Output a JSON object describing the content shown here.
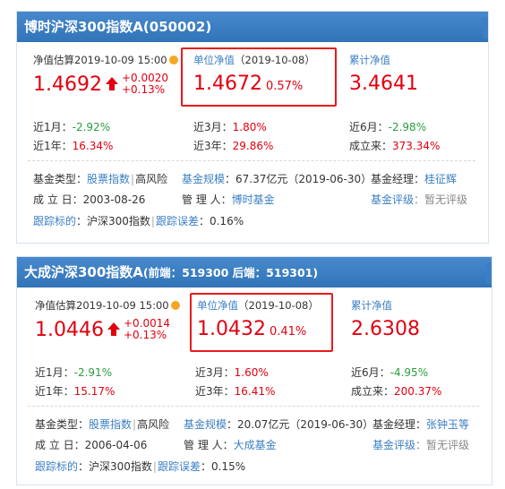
{
  "funds": [
    {
      "title": "博时沪深300指数A(050002)",
      "estimate_label": "净值估算2019-10-09 15:00",
      "estimate_value": "1.4692",
      "estimate_change_abs": "+0.0020",
      "estimate_change_pct": "+0.13%",
      "nav_label": "单位净值",
      "nav_date": "（2019-10-08）",
      "nav_value": "1.4672",
      "nav_pct": "0.57%",
      "acc_label": "累计净值",
      "acc_value": "3.4641",
      "perf": {
        "m1_label": "近1月：",
        "m1": "-2.92%",
        "m3_label": "近3月：",
        "m3": "1.80%",
        "m6_label": "近6月：",
        "m6": "-2.98%",
        "y1_label": "近1年：",
        "y1": "16.34%",
        "y3_label": "近3年：",
        "y3": "29.86%",
        "since_label": "成立来：",
        "since": "373.34%"
      },
      "info": {
        "type_label": "基金类型：",
        "type": "股票指数",
        "risk": "高风险",
        "scale_label": "基金规模",
        "scale": "：67.37亿元（2019-06-30）",
        "manager_label": "基金经理：",
        "manager": "桂征辉",
        "founded_label": "成 立 日：",
        "founded": "2003-08-26",
        "admin_label": "管 理 人：",
        "admin": "博时基金",
        "rating_label": "基金评级",
        "rating": "：暂无评级",
        "track_label": "跟踪标的",
        "track": "：沪深300指数",
        "error_label": "跟踪误差",
        "error": "：0.16%"
      }
    },
    {
      "title": "大成沪深300指数A",
      "title_sub": "(前端：519300  后端：519301)",
      "estimate_label": "净值估算2019-10-09 15:00",
      "estimate_value": "1.0446",
      "estimate_change_abs": "+0.0014",
      "estimate_change_pct": "+0.13%",
      "nav_label": "单位净值",
      "nav_date": "（2019-10-08）",
      "nav_value": "1.0432",
      "nav_pct": "0.41%",
      "acc_label": "累计净值",
      "acc_value": "2.6308",
      "perf": {
        "m1_label": "近1月：",
        "m1": "-2.91%",
        "m3_label": "近3月：",
        "m3": "1.60%",
        "m6_label": "近6月：",
        "m6": "-4.95%",
        "y1_label": "近1年：",
        "y1": "15.17%",
        "y3_label": "近3年：",
        "y3": "16.41%",
        "since_label": "成立来：",
        "since": "200.37%"
      },
      "info": {
        "type_label": "基金类型：",
        "type": "股票指数",
        "risk": "高风险",
        "scale_label": "基金规模",
        "scale": "：20.07亿元（2019-06-30）",
        "manager_label": "基金经理：",
        "manager": "张钟玉等",
        "founded_label": "成 立 日：",
        "founded": "2006-04-06",
        "admin_label": "管 理 人：",
        "admin": "大成基金",
        "rating_label": "基金评级",
        "rating": "：暂无评级",
        "track_label": "跟踪标的",
        "track": "：沪深300指数",
        "error_label": "跟踪误差",
        "error": "：0.15%"
      }
    }
  ],
  "colors": {
    "accent": "#3b7fc4",
    "up": "#e1000f",
    "down": "#2a9d3e",
    "highlight": "#e81c1c"
  }
}
